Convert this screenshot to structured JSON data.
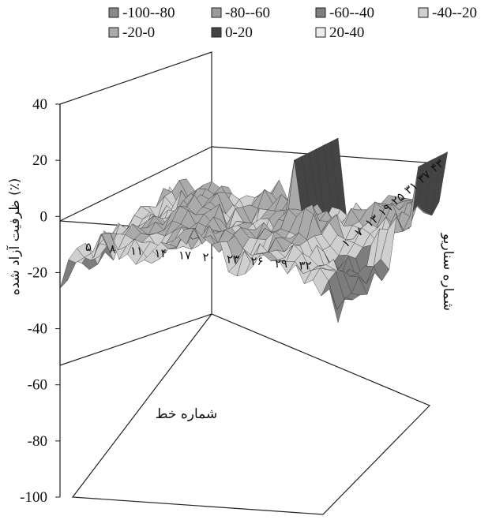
{
  "chart_data": {
    "type": "surface-3d",
    "ylabel": "ظرفیت آزاد شده (٪)",
    "xlabel": "شماره خط",
    "zlabel": "شماره سناریو",
    "yticks": [
      "40",
      "20",
      "0",
      "-20",
      "-40",
      "-60",
      "-80",
      "-100"
    ],
    "ylim": [
      -100,
      40
    ],
    "xticks": [
      "۵",
      "۸",
      "۱۱",
      "۱۴",
      "۱۷",
      "۲۰",
      "۲۳",
      "۲۶",
      "۲۹",
      "۳۲"
    ],
    "zticks": [
      "۱",
      "۷",
      "۱۳",
      "۱۹",
      "۲۵",
      "۳۱",
      "۳۷",
      "۴۳"
    ],
    "legend": {
      "position": "top",
      "entries": [
        {
          "label": "-100--80",
          "color": "#8a8a8a"
        },
        {
          "label": "-80--60",
          "color": "#9c9c9c"
        },
        {
          "label": "-60--40",
          "color": "#7d7d7d"
        },
        {
          "label": "-40--20",
          "color": "#cfcfcf"
        },
        {
          "label": "-20-0",
          "color": "#aaaaaa"
        },
        {
          "label": "0-20",
          "color": "#444444"
        },
        {
          "label": "20-40",
          "color": "#ececec"
        }
      ]
    }
  }
}
